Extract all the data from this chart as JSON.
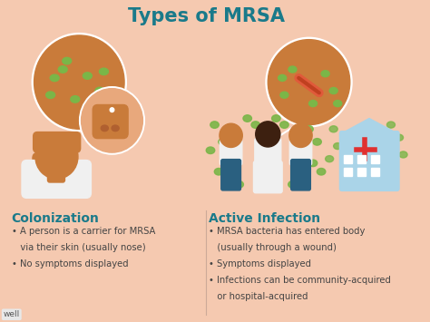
{
  "title": "Types of MRSA",
  "title_color": "#1a7a8a",
  "background_color": "#f5c9b0",
  "section1_header": "Colonization",
  "section1_bullets": [
    "A person is a carrier for MRSA",
    "via their skin (usually nose)",
    "No symptoms displayed"
  ],
  "section2_header": "Active Infection",
  "section2_bullets": [
    "MRSA bacteria has entered body",
    "(usually through a wound)",
    "Symptoms displayed",
    "Infections can be community-acquired",
    "or hospital-acquired"
  ],
  "header_color": "#1a7a8a",
  "bullet_color": "#444444",
  "skin_circle_color": "#c97b3a",
  "bacteria_color": "#7ab648",
  "wound_color": "#e05a3a",
  "person_skin": "#c97b3a",
  "watermark": "well",
  "line_color": "#ffffff"
}
